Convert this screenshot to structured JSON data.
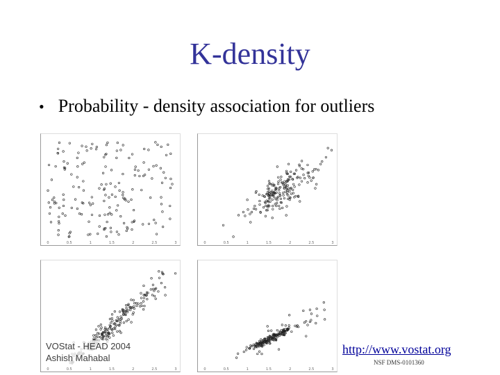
{
  "slide": {
    "title": "K-density",
    "bullet_symbol": "•",
    "bullet_text": "Probability - density association for outliers"
  },
  "footer": {
    "line1": "VOStat - HEAD 2004",
    "line2": "Ashish Mahabal",
    "url": "http://www.vostat.org",
    "grant": "NSF DMS-0101360"
  },
  "chart_data": [
    {
      "type": "scatter",
      "panel": "top-left",
      "xlim": [
        0,
        3
      ],
      "ylim": [
        0,
        3
      ],
      "xticks": [
        "0",
        "0.5",
        "1",
        "1.5",
        "2",
        "2.5",
        "3"
      ],
      "description_points": "uniform cloud",
      "n": 180,
      "cluster": {
        "cx": 1.5,
        "cy": 1.5,
        "sx": 0.75,
        "sy": 0.6,
        "slope": 0
      }
    },
    {
      "type": "scatter",
      "panel": "top-right",
      "xlim": [
        0,
        3
      ],
      "ylim": [
        0,
        3
      ],
      "xticks": [
        "0",
        "0.5",
        "1",
        "1.5",
        "2",
        "2.5",
        "3"
      ],
      "n": 200,
      "cluster": {
        "cx": 1.75,
        "cy": 1.35,
        "sx": 0.4,
        "sy": 0.25,
        "slope": 0.8
      }
    },
    {
      "type": "scatter",
      "panel": "bottom-left",
      "xlim": [
        0,
        3
      ],
      "ylim": [
        0,
        3
      ],
      "xticks": [
        "0",
        "0.5",
        "1",
        "1.5",
        "2",
        "2.5",
        "3"
      ],
      "n": 220,
      "cluster": {
        "cx": 1.5,
        "cy": 1.1,
        "sx": 0.55,
        "sy": 0.15,
        "slope": 1.1
      }
    },
    {
      "type": "scatter",
      "panel": "bottom-right",
      "xlim": [
        0,
        3
      ],
      "ylim": [
        0,
        3
      ],
      "xticks": [
        "0",
        "0.5",
        "1",
        "1.5",
        "2",
        "2.5",
        "3"
      ],
      "n": 200,
      "cluster": {
        "cx": 1.55,
        "cy": 0.75,
        "sx": 0.25,
        "sy": 0.06,
        "slope": 0.6
      }
    }
  ]
}
